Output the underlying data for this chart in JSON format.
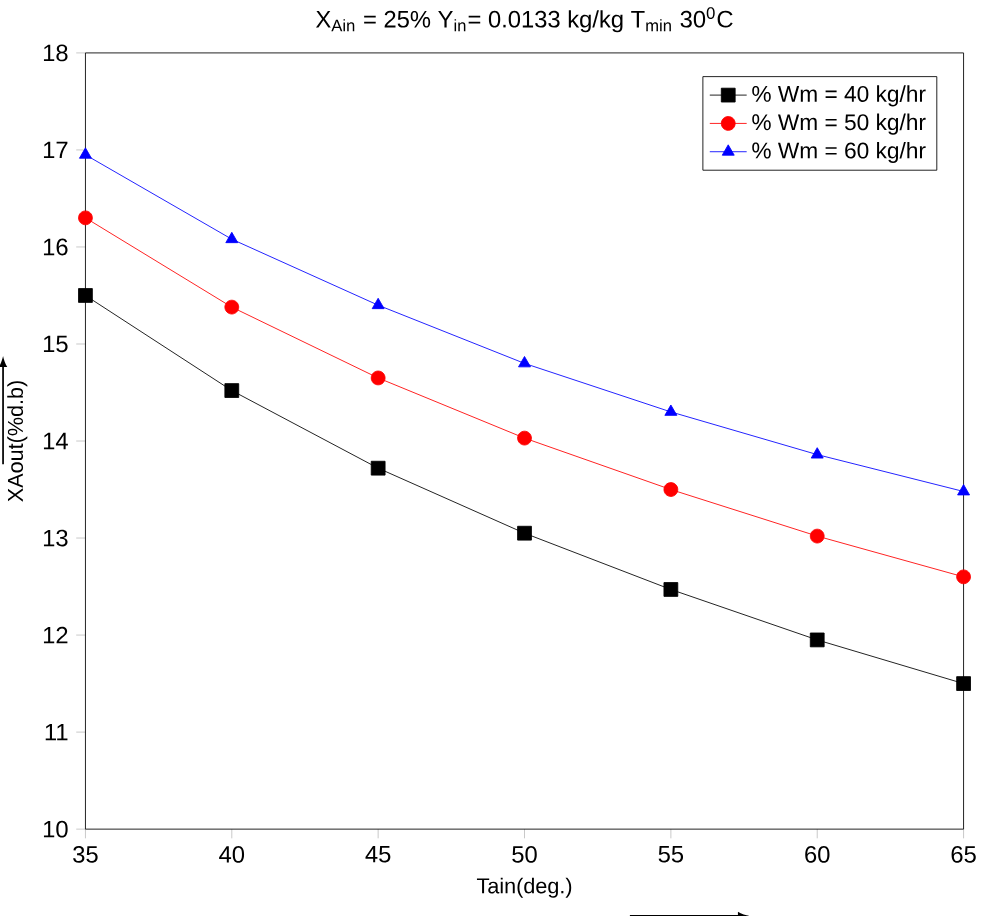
{
  "chart_data": {
    "type": "line",
    "title": "X$_{Ain}$ = 25%     Y$_{in}$= 0.0133 kg/kg     T$_{min}$ 30$^{0}$C",
    "xlabel": "Tain(deg.)",
    "ylabel": "XAout(%d.b)",
    "x": [
      35,
      40,
      45,
      50,
      55,
      60,
      65
    ],
    "series": [
      {
        "name": "% Wm = 40 kg/hr",
        "color": "#000000",
        "marker": "square",
        "values": [
          15.5,
          14.52,
          13.72,
          13.05,
          12.47,
          11.95,
          11.5
        ]
      },
      {
        "name": "% Wm = 50 kg/hr",
        "color": "#ff0000",
        "marker": "circle",
        "values": [
          16.3,
          15.38,
          14.65,
          14.03,
          13.5,
          13.02,
          12.6
        ]
      },
      {
        "name": "% Wm = 60 kg/hr",
        "color": "#0000ff",
        "marker": "triangle",
        "values": [
          16.95,
          16.08,
          15.4,
          14.8,
          14.3,
          13.86,
          13.48
        ]
      }
    ],
    "xlim": [
      35,
      65
    ],
    "ylim": [
      10,
      18
    ],
    "xticks": [
      35,
      40,
      45,
      50,
      55,
      60,
      65
    ],
    "yticks": [
      10,
      11,
      12,
      13,
      14,
      15,
      16,
      17,
      18
    ],
    "grid": false,
    "legend": "top right",
    "line_style": "solid"
  }
}
